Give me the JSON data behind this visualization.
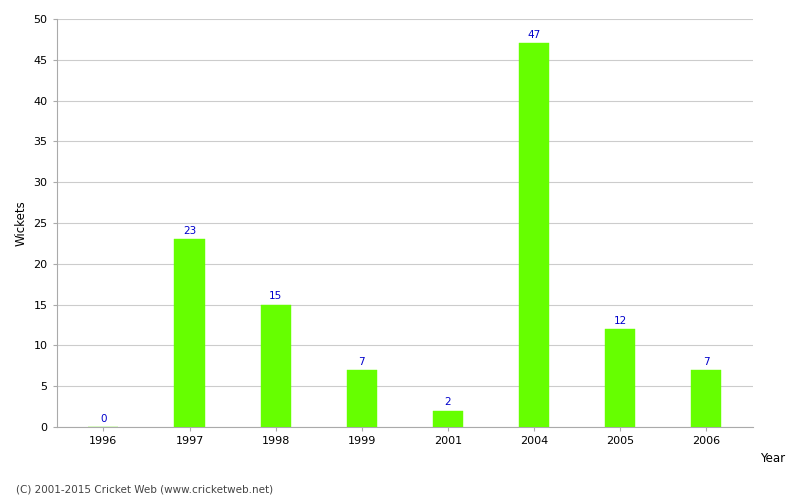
{
  "years": [
    "1996",
    "1997",
    "1998",
    "1999",
    "2001",
    "2004",
    "2005",
    "2006"
  ],
  "values": [
    0,
    23,
    15,
    7,
    2,
    47,
    12,
    7
  ],
  "bar_color": "#66ff00",
  "bar_edge_color": "#66ff00",
  "label_color": "#0000cc",
  "label_fontsize": 7.5,
  "xlabel": "Year",
  "ylabel": "Wickets",
  "ylim": [
    0,
    50
  ],
  "yticks": [
    0,
    5,
    10,
    15,
    20,
    25,
    30,
    35,
    40,
    45,
    50
  ],
  "background_color": "#ffffff",
  "grid_color": "#cccccc",
  "footer_text": "(C) 2001-2015 Cricket Web (www.cricketweb.net)",
  "footer_fontsize": 7.5,
  "footer_color": "#444444",
  "axis_label_fontsize": 8.5,
  "tick_fontsize": 8,
  "bar_width": 0.35
}
